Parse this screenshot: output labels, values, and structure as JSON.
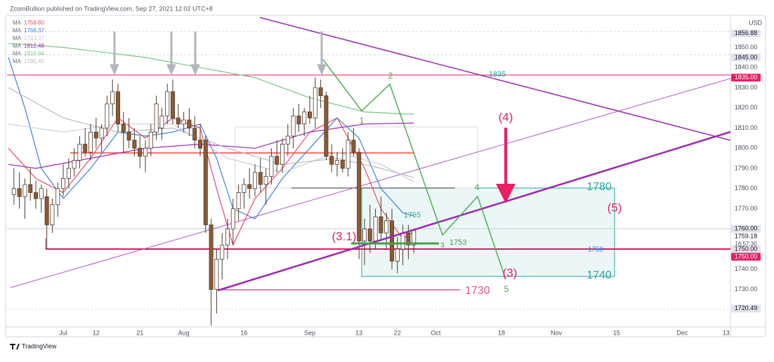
{
  "header": "ZcomBullion published on TradingView.com, Sep 27, 2021 12:02 UTC+8",
  "footer": "TradingView",
  "chart_data": {
    "type": "candlestick",
    "currency": "USD",
    "countdown": "16:57:30",
    "x": [
      -9,
      -8,
      -7,
      -6,
      -5,
      -4,
      -3,
      -2,
      -1,
      0,
      1,
      2,
      3,
      4,
      5,
      6,
      7,
      8,
      9,
      10,
      11,
      12,
      13,
      14,
      15,
      16,
      17,
      18,
      19,
      20,
      21,
      22,
      23,
      24,
      25,
      26,
      27,
      28,
      29,
      30,
      31,
      32,
      33,
      34,
      35,
      36,
      37,
      38,
      39,
      40,
      41,
      42,
      43,
      44,
      45,
      46,
      47,
      48,
      49,
      50,
      51,
      52,
      53,
      54,
      55,
      56,
      57,
      58,
      59,
      60,
      61,
      62,
      63,
      64
    ],
    "open": [
      1777,
      1780,
      1776,
      1782,
      1778,
      1775,
      1776,
      1762,
      1772,
      1780,
      1785,
      1790,
      1794,
      1802,
      1798,
      1808,
      1805,
      1810,
      1822,
      1828,
      1812,
      1808,
      1804,
      1800,
      1796,
      1800,
      1808,
      1810,
      1816,
      1828,
      1815,
      1812,
      1814,
      1810,
      1804,
      1804,
      1762,
      1730,
      1745,
      1752,
      1760,
      1770,
      1778,
      1782,
      1780,
      1788,
      1782,
      1786,
      1796,
      1792,
      1802,
      1806,
      1816,
      1812,
      1818,
      1815,
      1830,
      1826,
      1796,
      1792,
      1794,
      1790,
      1804,
      1798,
      1754,
      1760,
      1754,
      1766,
      1758,
      1764,
      1744,
      1750,
      1758,
      1752
    ],
    "high": [
      1790,
      1788,
      1785,
      1790,
      1784,
      1782,
      1780,
      1775,
      1783,
      1792,
      1795,
      1800,
      1806,
      1810,
      1812,
      1815,
      1812,
      1826,
      1834,
      1832,
      1818,
      1815,
      1810,
      1806,
      1804,
      1812,
      1826,
      1820,
      1832,
      1834,
      1822,
      1818,
      1820,
      1816,
      1812,
      1806,
      1765,
      1750,
      1758,
      1765,
      1775,
      1782,
      1785,
      1790,
      1792,
      1795,
      1790,
      1800,
      1804,
      1805,
      1812,
      1820,
      1822,
      1820,
      1826,
      1835,
      1834,
      1828,
      1802,
      1798,
      1800,
      1808,
      1810,
      1800,
      1765,
      1772,
      1770,
      1776,
      1768,
      1770,
      1756,
      1762,
      1762,
      1760
    ],
    "low": [
      1772,
      1770,
      1765,
      1774,
      1770,
      1768,
      1750,
      1758,
      1766,
      1776,
      1780,
      1786,
      1790,
      1796,
      1794,
      1800,
      1798,
      1806,
      1816,
      1808,
      1798,
      1800,
      1796,
      1790,
      1788,
      1796,
      1804,
      1804,
      1812,
      1812,
      1810,
      1808,
      1806,
      1800,
      1796,
      1758,
      1712,
      1718,
      1735,
      1745,
      1752,
      1764,
      1770,
      1775,
      1776,
      1778,
      1772,
      1782,
      1788,
      1788,
      1796,
      1800,
      1808,
      1806,
      1812,
      1810,
      1820,
      1794,
      1788,
      1786,
      1788,
      1786,
      1796,
      1745,
      1742,
      1748,
      1750,
      1755,
      1750,
      1740,
      1738,
      1742,
      1745,
      1748
    ],
    "close": [
      1780,
      1776,
      1782,
      1778,
      1775,
      1780,
      1762,
      1772,
      1780,
      1785,
      1790,
      1794,
      1802,
      1798,
      1808,
      1805,
      1810,
      1822,
      1828,
      1812,
      1808,
      1804,
      1800,
      1796,
      1800,
      1808,
      1822,
      1816,
      1828,
      1815,
      1812,
      1814,
      1810,
      1804,
      1800,
      1762,
      1730,
      1745,
      1752,
      1760,
      1770,
      1778,
      1782,
      1780,
      1788,
      1782,
      1786,
      1796,
      1792,
      1802,
      1806,
      1816,
      1812,
      1818,
      1815,
      1830,
      1826,
      1796,
      1792,
      1794,
      1790,
      1804,
      1798,
      1754,
      1760,
      1754,
      1766,
      1758,
      1764,
      1744,
      1750,
      1758,
      1752,
      1759.18
    ],
    "up_color": "#ffffff",
    "down_color": "#8d5a33",
    "xlim": [
      -10.26,
      121.8
    ],
    "xticks": [
      {
        "value": 0,
        "label": "Jul"
      },
      {
        "value": 6,
        "label": "12"
      },
      {
        "value": 14,
        "label": "21"
      },
      {
        "value": 22,
        "label": "Aug"
      },
      {
        "value": 33,
        "label": "16"
      },
      {
        "value": 45,
        "label": "Sep"
      },
      {
        "value": 54,
        "label": "13"
      },
      {
        "value": 61,
        "label": "22"
      },
      {
        "value": 68,
        "label": "Oct"
      },
      {
        "value": 80,
        "label": "18"
      },
      {
        "value": 90,
        "label": "Nov"
      },
      {
        "value": 101,
        "label": "15"
      },
      {
        "value": 113,
        "label": "Dec"
      },
      {
        "value": 121,
        "label": "13"
      }
    ],
    "ylim": [
      1711.39,
      1865.83
    ],
    "yticks": [
      {
        "value": 1730,
        "label": "1730.00"
      },
      {
        "value": 1740,
        "label": "1740.00"
      },
      {
        "value": 1770,
        "label": "1770.00"
      },
      {
        "value": 1780,
        "label": "1780.00"
      },
      {
        "value": 1790,
        "label": "1790.00"
      },
      {
        "value": 1800,
        "label": "1800.00"
      },
      {
        "value": 1810,
        "label": "1810.00"
      },
      {
        "value": 1820,
        "label": "1820.00"
      },
      {
        "value": 1830,
        "label": "1830.00"
      },
      {
        "value": 1840,
        "label": "1840.00"
      },
      {
        "value": 1850,
        "label": "1850.00"
      }
    ],
    "grid": false,
    "price_labels": [
      {
        "value": 1856.88,
        "label": "1856.88",
        "bg": "#e0e3eb",
        "color": "#131722"
      },
      {
        "value": 1845,
        "label": "1845.00",
        "bg": "#e0e3eb",
        "color": "#131722"
      },
      {
        "value": 1835,
        "label": "1835.00",
        "bg": "#e91e63",
        "color": "#ffffff"
      },
      {
        "value": 1760,
        "label": "1760.00",
        "bg": "#e0e3eb",
        "color": "#131722"
      },
      {
        "value": 1759.18,
        "label": "1759.18",
        "bg": "#ffffff",
        "color": "#131722"
      },
      {
        "value": 1750,
        "label": "1750.00",
        "bg": "#e0e3eb",
        "color": "#131722"
      },
      {
        "value": 1750,
        "label": "1750.00",
        "bg": "#e91e63",
        "color": "#ffffff"
      },
      {
        "value": 1720.49,
        "label": "1720.49",
        "bg": "#e0e3eb",
        "color": "#131722"
      }
    ],
    "moving_averages": [
      {
        "name": "MA",
        "color": "#e5486b",
        "value": 1758.8,
        "value_label": "1758.80",
        "x": [
          -10,
          -5,
          0,
          5,
          10,
          15,
          20,
          25,
          28,
          31,
          35,
          40,
          45,
          50,
          55,
          58,
          62,
          64
        ],
        "values": [
          1800,
          1785,
          1778,
          1795,
          1815,
          1805,
          1815,
          1810,
          1780,
          1752,
          1775,
          1790,
          1808,
          1815,
          1790,
          1770,
          1755,
          1758.8
        ]
      },
      {
        "name": "MA",
        "color": "#3d7fe0",
        "value": 1766.37,
        "value_label": "1766.37",
        "x": [
          -10,
          -7,
          -4,
          0,
          5,
          10,
          15,
          20,
          25,
          28,
          31,
          35,
          40,
          45,
          50,
          54,
          58,
          62,
          64
        ],
        "values": [
          1845,
          1820,
          1790,
          1775,
          1790,
          1808,
          1806,
          1808,
          1812,
          1795,
          1770,
          1765,
          1785,
          1800,
          1815,
          1805,
          1780,
          1768,
          1766.37
        ]
      },
      {
        "name": "MA",
        "color": "#c9ccd4",
        "value": 1783.37,
        "value_label": "1783.37",
        "x": [
          -10,
          0,
          10,
          20,
          30,
          40,
          50,
          58,
          64
        ],
        "values": [
          1812,
          1808,
          1812,
          1812,
          1795,
          1788,
          1798,
          1792,
          1783.37
        ]
      },
      {
        "name": "MA",
        "color": "#9c27b0",
        "value": 1812.48,
        "value_label": "1812.48",
        "x": [
          -10,
          -5,
          5,
          15,
          25,
          35,
          45,
          55,
          62,
          64
        ],
        "values": [
          1792,
          1790,
          1795,
          1800,
          1802,
          1800,
          1808,
          1812,
          1812.4,
          1812.48
        ]
      },
      {
        "name": "MA",
        "color": "#7cc47f",
        "value": 1816.94,
        "value_label": "1816.94",
        "x": [
          -10,
          0,
          15,
          25,
          35,
          45,
          55,
          62,
          64
        ],
        "values": [
          1852,
          1850,
          1845,
          1840,
          1835,
          1825,
          1818,
          1817,
          1816.94
        ]
      },
      {
        "name": "MA",
        "color": "#b7bac2",
        "value": 1785.45,
        "value_label": "1785.45",
        "x": [
          -10,
          0,
          10,
          20,
          30,
          40,
          50,
          58,
          64
        ],
        "values": [
          1830,
          1815,
          1808,
          1810,
          1800,
          1792,
          1795,
          1790,
          1785.45
        ]
      }
    ],
    "annotations": [
      "2",
      "1",
      "3",
      "4",
      "5",
      "(3.1)",
      "(4)",
      "(3)",
      "(5)",
      "1780",
      "1740",
      "1765",
      "1753",
      "1750",
      "1730",
      "1835"
    ]
  }
}
